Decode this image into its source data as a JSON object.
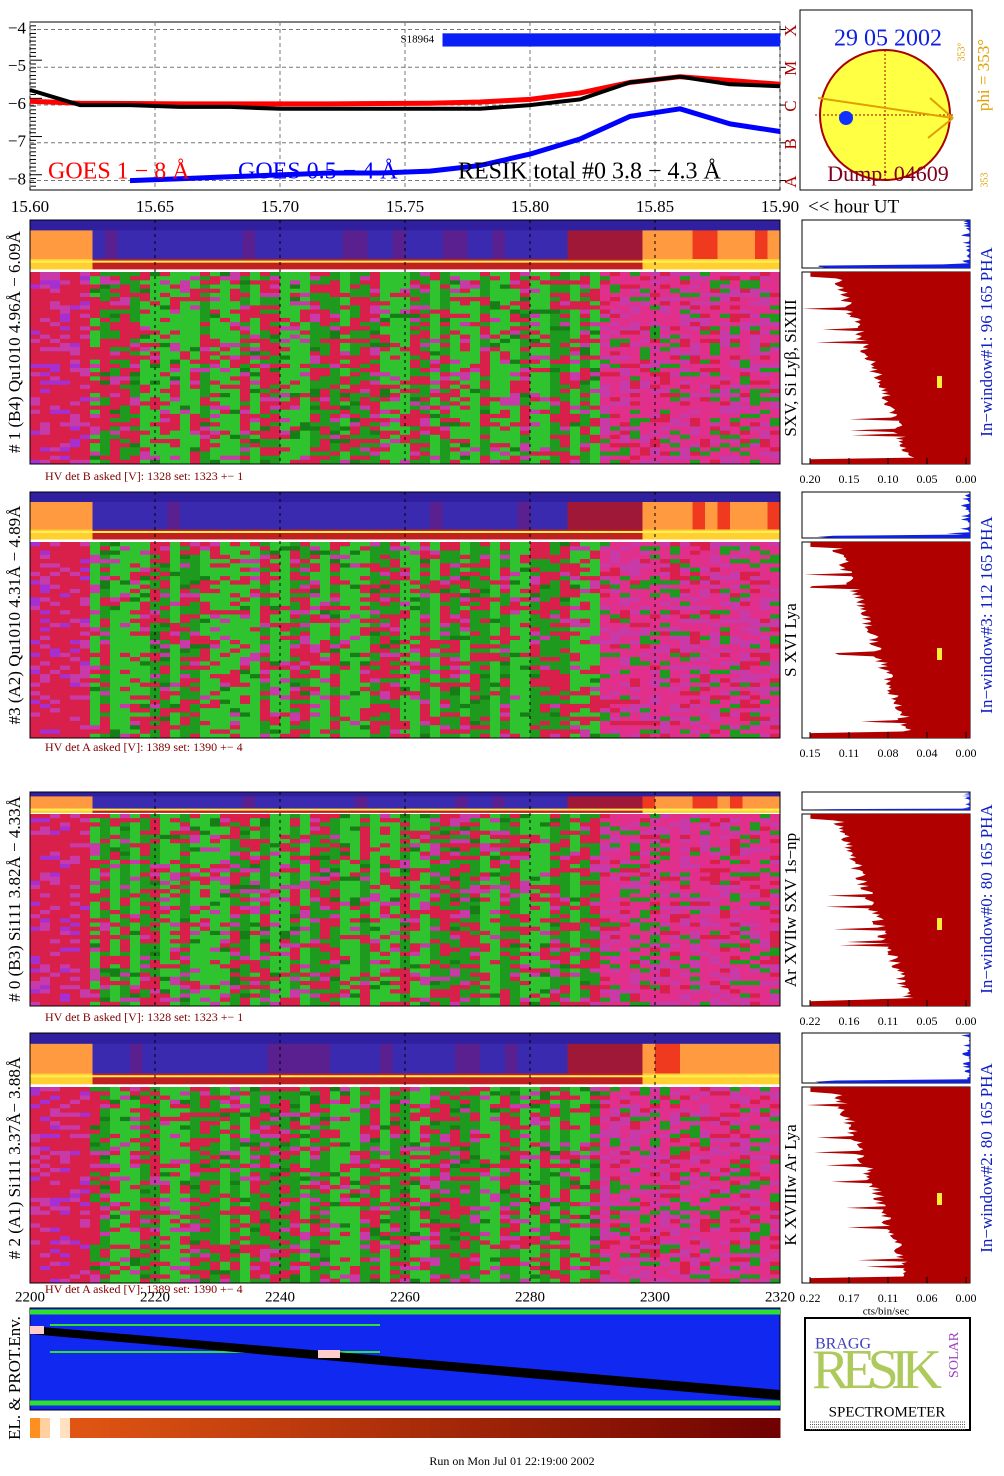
{
  "chart_data": {
    "type": "line",
    "x": [
      15.6,
      15.62,
      15.64,
      15.66,
      15.68,
      15.7,
      15.72,
      15.74,
      15.76,
      15.78,
      15.8,
      15.82,
      15.84,
      15.86,
      15.88,
      15.9
    ],
    "xlim": [
      15.6,
      15.9
    ],
    "xticks": [
      {
        "value": 15.6,
        "label": "15.60"
      },
      {
        "value": 15.65,
        "label": "15.65"
      },
      {
        "value": 15.7,
        "label": "15.70"
      },
      {
        "value": 15.75,
        "label": "15.75"
      },
      {
        "value": 15.8,
        "label": "15.80"
      },
      {
        "value": 15.85,
        "label": "15.85"
      },
      {
        "value": 15.9,
        "label": "15.90"
      }
    ],
    "xlabel": "<< hour UT",
    "ylim": [
      -8.25,
      -3.8
    ],
    "yticks": [
      {
        "value": -4,
        "label": "−4"
      },
      {
        "value": -5,
        "label": "−5"
      },
      {
        "value": -6,
        "label": "−6"
      },
      {
        "value": -7,
        "label": "−7"
      },
      {
        "value": -8,
        "label": "−8"
      }
    ],
    "y2lim": [
      -8.25,
      -3.8
    ],
    "y2ticks": [
      {
        "value": -8,
        "label": "A"
      },
      {
        "value": -7,
        "label": "B"
      },
      {
        "value": -6,
        "label": "C"
      },
      {
        "value": -5,
        "label": "M"
      },
      {
        "value": -4,
        "label": "X"
      }
    ],
    "grid": true,
    "series": [
      {
        "name": "GOES 1 − 8 Å",
        "color": "#ff0000",
        "values": [
          -5.9,
          -5.95,
          -5.96,
          -5.97,
          -5.97,
          -5.97,
          -5.97,
          -5.96,
          -5.95,
          -5.92,
          -5.85,
          -5.68,
          -5.4,
          -5.25,
          -5.35,
          -5.45
        ]
      },
      {
        "name": "GOES 0.5 − 4 Å",
        "color": "#0000ff",
        "values": [
          null,
          null,
          -8.0,
          -7.95,
          -7.9,
          -7.85,
          -7.8,
          -7.8,
          -7.75,
          -7.6,
          -7.3,
          -6.9,
          -6.3,
          -6.1,
          -6.5,
          -6.7
        ]
      },
      {
        "name": "RESIK total #0  3.8 − 4.3 Å",
        "color": "#000000",
        "values": [
          -5.6,
          -6.0,
          -6.0,
          -6.05,
          -6.05,
          -6.1,
          -6.1,
          -6.1,
          -6.1,
          -6.1,
          -6.0,
          -5.85,
          -5.4,
          -5.25,
          -5.45,
          -5.5
        ]
      }
    ],
    "event": {
      "label": "S18964",
      "x": [
        15.765,
        15.9
      ]
    }
  },
  "sun": {
    "date": "29 05 2002",
    "phi": "phi = 353°",
    "phi_small": "353°",
    "small": "353",
    "dump": "Dump: 04609"
  },
  "time_axis": {
    "lim": [
      2200,
      2320
    ],
    "ticks": [
      2200,
      2220,
      2240,
      2260,
      2280,
      2300,
      2320
    ]
  },
  "panels": [
    {
      "label": "# 1 (B4) Qu1010 4.96Å − 6.09Å",
      "lines": "SXV, Si Lyβ, SiXIII",
      "hv": "HV det B asked [V]:  1328 set:  1323  +−    1",
      "pha": "In−window#1:   96 165  PHA",
      "pha_ticks": [
        "0.20",
        "0.15",
        "0.10",
        "0.05",
        "0.00"
      ]
    },
    {
      "label": "#3 (A2) Qu1010  4.31Å − 4.89Å",
      "lines": "S XVI Lya",
      "hv": "HV det A asked [V]:  1389 set:  1390  +−    4",
      "pha": "In−window#3:   112 165  PHA",
      "pha_ticks": [
        "0.15",
        "0.11",
        "0.08",
        "0.04",
        "0.00"
      ]
    },
    {
      "label": "# 0 (B3) Si111  3.82Å − 4.33Å",
      "lines": "Ar XVIIw  SXV 1s−np",
      "hv": "HV det B asked [V]:  1328 set:  1323  +−    1",
      "pha": "In−window#0:   80 165  PHA",
      "pha_ticks": [
        "0.22",
        "0.16",
        "0.11",
        "0.05",
        "0.00"
      ]
    },
    {
      "label": "# 2 (A1) Si111  3.37Å− 3.88Å",
      "lines": "K XVIIIw  Ar Lya",
      "hv": "HV det A asked [V]:  1389 set:  1390  +−    4",
      "pha": "In−window#2:   80 165  PHA",
      "pha_ticks": [
        "0.22",
        "0.17",
        "0.11",
        "0.06",
        "0.00"
      ]
    }
  ],
  "pha_unit": "cts/bin/sec",
  "env": "EL. & PROT.Env.",
  "logo": {
    "top": "BRAGG",
    "main": "RESIK",
    "side": "SOLAR",
    "bottom": "SPECTROMETER"
  },
  "footer": "Run on Mon Jul 01 22:19:00 2002"
}
